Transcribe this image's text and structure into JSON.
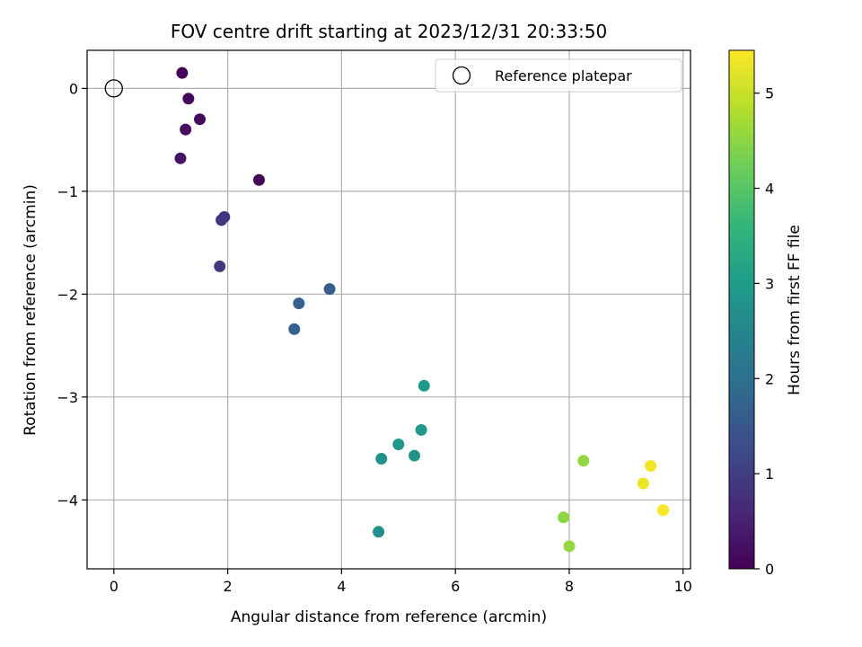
{
  "chart_data": {
    "type": "scatter",
    "title": "FOV centre drift starting at 2023/12/31 20:33:50",
    "xlabel": "Angular distance from reference (arcmin)",
    "ylabel": "Rotation from reference (arcmin)",
    "xlim": [
      -0.47,
      10.13
    ],
    "ylim": [
      -4.67,
      0.37
    ],
    "xticks": [
      0,
      2,
      4,
      6,
      8,
      10
    ],
    "yticks": [
      0,
      -1,
      -2,
      -3,
      -4
    ],
    "xtick_labels": [
      "0",
      "2",
      "4",
      "6",
      "8",
      "10"
    ],
    "ytick_labels": [
      "0",
      "−1",
      "−2",
      "−3",
      "−4"
    ],
    "grid": true,
    "legend": {
      "position": "top-right",
      "entries": [
        "Reference platepar"
      ]
    },
    "reference_point": {
      "x": 0,
      "y": 0
    },
    "colorbar": {
      "label": "Hours from first FF file",
      "range": [
        0,
        5.45
      ],
      "ticks": [
        0,
        1,
        2,
        3,
        4,
        5
      ],
      "tick_labels": [
        "0",
        "1",
        "2",
        "3",
        "4",
        "5"
      ],
      "colormap": [
        "#440154",
        "#482878",
        "#3e4989",
        "#31688e",
        "#26828e",
        "#1f9e89",
        "#35b779",
        "#6ece58",
        "#b5de2b",
        "#fde725"
      ]
    },
    "points": [
      {
        "x": 1.2,
        "y": 0.15,
        "hours": 0.05
      },
      {
        "x": 1.31,
        "y": -0.1,
        "hours": 0.1
      },
      {
        "x": 1.51,
        "y": -0.3,
        "hours": 0.15
      },
      {
        "x": 1.26,
        "y": -0.4,
        "hours": 0.2
      },
      {
        "x": 1.17,
        "y": -0.68,
        "hours": 0.3
      },
      {
        "x": 2.55,
        "y": -0.89,
        "hours": 0.05
      },
      {
        "x": 1.94,
        "y": -1.25,
        "hours": 0.8
      },
      {
        "x": 1.89,
        "y": -1.28,
        "hours": 0.85
      },
      {
        "x": 1.86,
        "y": -1.73,
        "hours": 0.9
      },
      {
        "x": 3.79,
        "y": -1.95,
        "hours": 1.6
      },
      {
        "x": 3.25,
        "y": -2.09,
        "hours": 1.65
      },
      {
        "x": 3.17,
        "y": -2.34,
        "hours": 1.7
      },
      {
        "x": 5.45,
        "y": -2.89,
        "hours": 2.9
      },
      {
        "x": 5.4,
        "y": -3.32,
        "hours": 2.95
      },
      {
        "x": 5.0,
        "y": -3.46,
        "hours": 2.85
      },
      {
        "x": 5.28,
        "y": -3.57,
        "hours": 2.8
      },
      {
        "x": 4.7,
        "y": -3.6,
        "hours": 2.75
      },
      {
        "x": 4.65,
        "y": -4.31,
        "hours": 2.7
      },
      {
        "x": 8.25,
        "y": -3.62,
        "hours": 4.55
      },
      {
        "x": 7.9,
        "y": -4.17,
        "hours": 4.5
      },
      {
        "x": 8.0,
        "y": -4.45,
        "hours": 4.55
      },
      {
        "x": 9.43,
        "y": -3.67,
        "hours": 5.35
      },
      {
        "x": 9.3,
        "y": -3.84,
        "hours": 5.3
      },
      {
        "x": 9.65,
        "y": -4.1,
        "hours": 5.4
      }
    ]
  }
}
